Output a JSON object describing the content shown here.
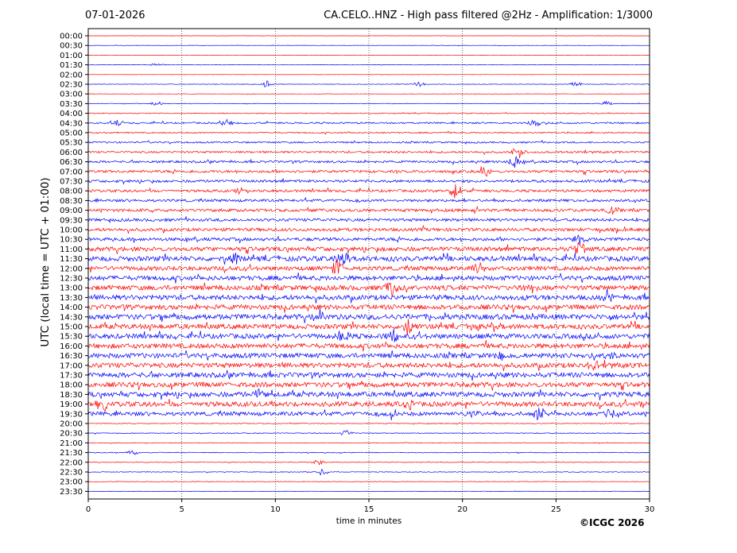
{
  "header": {
    "date": "07-01-2026",
    "title": "CA.CELO..HNZ - High pass filtered @2Hz - Amplification: 1/3000"
  },
  "footer": {
    "copyright": "©ICGC 2026"
  },
  "colors": {
    "trace_blue": "#0000ff",
    "trace_red": "#ff0000",
    "axes": "#000000"
  },
  "chart_data": {
    "type": "line",
    "title": "CA.CELO..HNZ - High pass filtered @2Hz - Amplification: 1/3000",
    "xlabel": "time in minutes",
    "ylabel": "UTC (local time = UTC + 01:00)",
    "xlim": [
      0,
      30
    ],
    "x_ticks": [
      0,
      5,
      10,
      15,
      20,
      25,
      30
    ],
    "grid": "vertical dotted lines at 5, 10, 15, 20, 25 minutes",
    "y_ticks": [
      "00:00",
      "00:30",
      "01:00",
      "01:30",
      "02:00",
      "02:30",
      "03:00",
      "03:30",
      "04:00",
      "04:30",
      "05:00",
      "05:30",
      "06:00",
      "06:30",
      "07:00",
      "07:30",
      "08:00",
      "08:30",
      "09:00",
      "09:30",
      "10:00",
      "10:30",
      "11:00",
      "11:30",
      "12:00",
      "12:30",
      "13:00",
      "13:30",
      "14:00",
      "14:30",
      "15:00",
      "15:30",
      "16:00",
      "16:30",
      "17:00",
      "17:30",
      "18:00",
      "18:30",
      "19:00",
      "19:30",
      "20:00",
      "20:30",
      "21:00",
      "21:30",
      "22:00",
      "22:30",
      "23:00",
      "23:30"
    ],
    "trace_colors_by_row": [
      "red",
      "blue",
      "red",
      "blue",
      "red",
      "blue",
      "red",
      "blue",
      "red",
      "blue",
      "red",
      "blue",
      "red",
      "blue",
      "red",
      "blue",
      "red",
      "blue",
      "red",
      "blue",
      "red",
      "blue",
      "red",
      "blue",
      "red",
      "blue",
      "red",
      "blue",
      "red",
      "blue",
      "red",
      "blue",
      "red",
      "blue",
      "red",
      "blue",
      "red",
      "blue",
      "red",
      "blue",
      "red",
      "blue",
      "red",
      "blue",
      "red",
      "blue",
      "red",
      "blue"
    ],
    "noise_level_by_row": [
      0.15,
      0.2,
      0.15,
      0.25,
      0.15,
      0.3,
      0.25,
      0.35,
      0.6,
      1.0,
      0.8,
      1.0,
      1.2,
      1.4,
      1.6,
      1.6,
      1.6,
      1.6,
      1.8,
      1.8,
      2.0,
      2.0,
      2.6,
      3.0,
      2.6,
      2.8,
      3.0,
      3.0,
      3.0,
      3.2,
      3.0,
      3.0,
      3.0,
      3.0,
      3.0,
      3.0,
      3.0,
      3.0,
      3.0,
      2.4,
      0.5,
      0.5,
      0.4,
      0.5,
      0.4,
      0.4,
      0.3,
      0.3
    ],
    "events": [
      {
        "row": "01:30",
        "minute": 3.7,
        "amp": 3
      },
      {
        "row": "02:30",
        "minute": 9.6,
        "amp": 5
      },
      {
        "row": "02:30",
        "minute": 17.7,
        "amp": 3
      },
      {
        "row": "02:30",
        "minute": 26.1,
        "amp": 3
      },
      {
        "row": "03:30",
        "minute": 3.7,
        "amp": 3
      },
      {
        "row": "03:30",
        "minute": 27.7,
        "amp": 3
      },
      {
        "row": "04:30",
        "minute": 1.5,
        "amp": 5
      },
      {
        "row": "04:30",
        "minute": 7.4,
        "amp": 7
      },
      {
        "row": "04:30",
        "minute": 23.9,
        "amp": 4
      },
      {
        "row": "06:00",
        "minute": 23.0,
        "amp": 8
      },
      {
        "row": "06:30",
        "minute": 22.8,
        "amp": 10
      },
      {
        "row": "07:00",
        "minute": 21.2,
        "amp": 8
      },
      {
        "row": "08:00",
        "minute": 8.2,
        "amp": 5
      },
      {
        "row": "08:00",
        "minute": 19.6,
        "amp": 9
      },
      {
        "row": "09:00",
        "minute": 27.9,
        "amp": 6
      },
      {
        "row": "10:30",
        "minute": 26.3,
        "amp": 7
      },
      {
        "row": "11:00",
        "minute": 26.2,
        "amp": 12
      },
      {
        "row": "11:30",
        "minute": 13.6,
        "amp": 14
      },
      {
        "row": "11:30",
        "minute": 7.8,
        "amp": 6
      },
      {
        "row": "12:00",
        "minute": 13.3,
        "amp": 10
      },
      {
        "row": "12:00",
        "minute": 20.9,
        "amp": 7
      },
      {
        "row": "13:00",
        "minute": 16.2,
        "amp": 14
      },
      {
        "row": "13:00",
        "minute": 23.6,
        "amp": 7
      },
      {
        "row": "13:30",
        "minute": 27.8,
        "amp": 6
      },
      {
        "row": "14:30",
        "minute": 12.4,
        "amp": 8
      },
      {
        "row": "15:00",
        "minute": 17.1,
        "amp": 11
      },
      {
        "row": "15:00",
        "minute": 20.6,
        "amp": 6
      },
      {
        "row": "15:30",
        "minute": 13.6,
        "amp": 8
      },
      {
        "row": "15:30",
        "minute": 16.3,
        "amp": 8
      },
      {
        "row": "16:30",
        "minute": 22.0,
        "amp": 6
      },
      {
        "row": "16:30",
        "minute": 28.0,
        "amp": 6
      },
      {
        "row": "17:00",
        "minute": 27.0,
        "amp": 6
      },
      {
        "row": "18:30",
        "minute": 9.1,
        "amp": 7
      },
      {
        "row": "19:00",
        "minute": 0.8,
        "amp": 9
      },
      {
        "row": "19:00",
        "minute": 17.2,
        "amp": 6
      },
      {
        "row": "19:00",
        "minute": 29.5,
        "amp": 6
      },
      {
        "row": "19:30",
        "minute": 16.2,
        "amp": 7
      },
      {
        "row": "19:30",
        "minute": 20.5,
        "amp": 8
      },
      {
        "row": "19:30",
        "minute": 24.1,
        "amp": 10
      },
      {
        "row": "19:30",
        "minute": 27.9,
        "amp": 6
      },
      {
        "row": "20:30",
        "minute": 13.8,
        "amp": 4
      },
      {
        "row": "21:30",
        "minute": 2.4,
        "amp": 4
      },
      {
        "row": "22:00",
        "minute": 12.3,
        "amp": 4
      },
      {
        "row": "22:30",
        "minute": 12.5,
        "amp": 4
      }
    ]
  }
}
